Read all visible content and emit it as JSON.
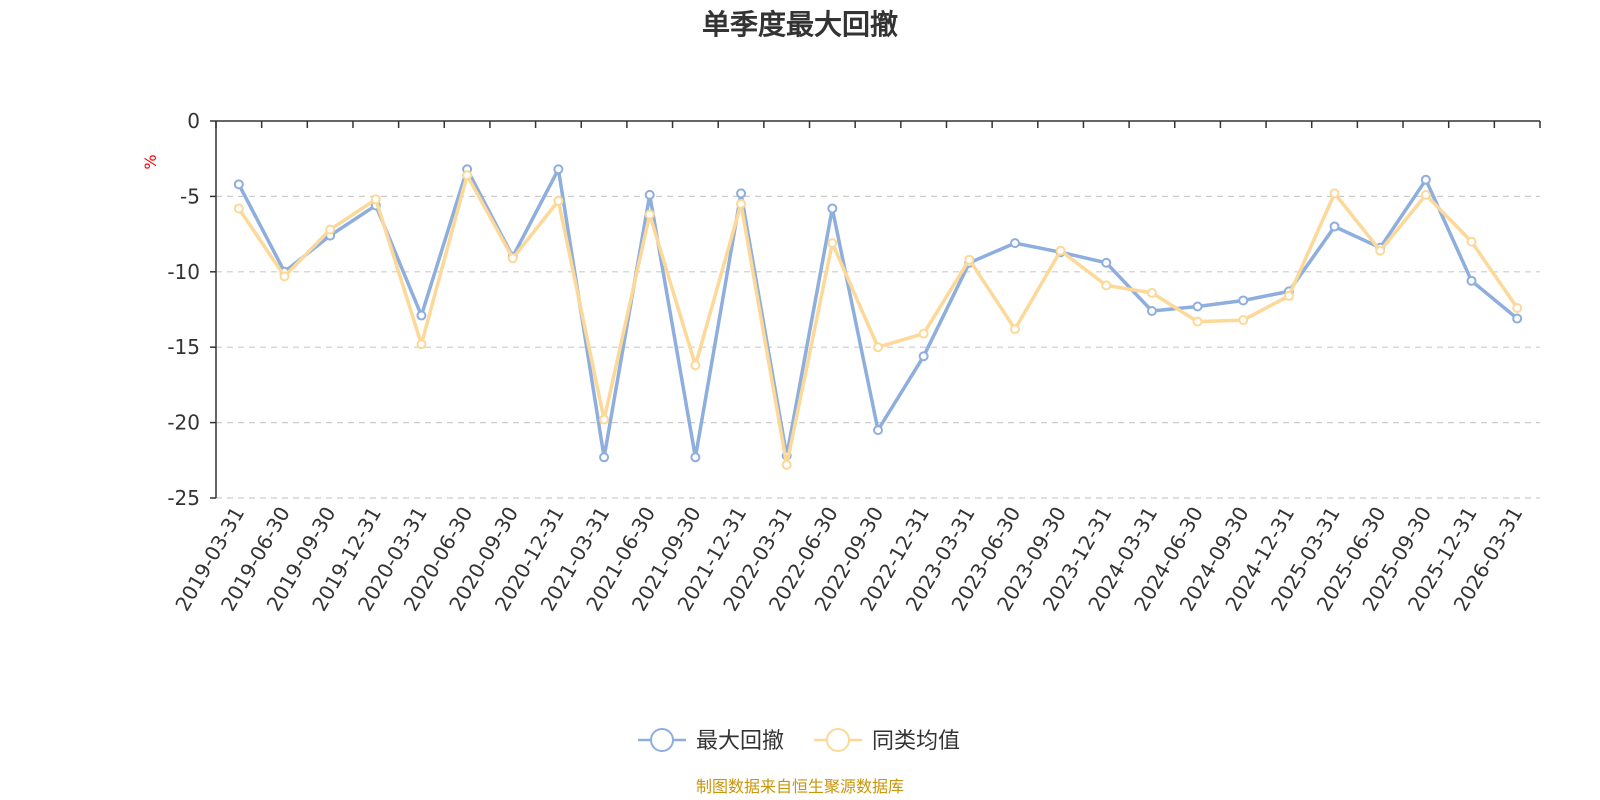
{
  "chart_data": {
    "type": "line",
    "title": "单季度最大回撤",
    "unit_label": "%",
    "source": "制图数据来自恒生聚源数据库",
    "ylim": [
      -25,
      0
    ],
    "yticks": [
      0,
      -5,
      -10,
      -15,
      -20,
      -25
    ],
    "grid": true,
    "legend_position": "bottom",
    "categories": [
      "2019-03-31",
      "2019-06-30",
      "2019-09-30",
      "2019-12-31",
      "2020-03-31",
      "2020-06-30",
      "2020-09-30",
      "2020-12-31",
      "2021-03-31",
      "2021-06-30",
      "2021-09-30",
      "2021-12-31",
      "2022-03-31",
      "2022-06-30",
      "2022-09-30",
      "2022-12-31",
      "2023-03-31",
      "2023-06-30",
      "2023-09-30",
      "2023-12-31",
      "2024-03-31",
      "2024-06-30",
      "2024-09-30",
      "2024-12-31",
      "2025-03-31",
      "2025-06-30",
      "2025-09-30",
      "2025-12-31",
      "2026-03-31"
    ],
    "series": [
      {
        "name": "最大回撤",
        "color": "#8eaedd",
        "values": [
          -4.2,
          -10.0,
          -7.6,
          -5.6,
          -12.9,
          -3.2,
          -9.0,
          -3.2,
          -22.3,
          -4.9,
          -22.3,
          -4.8,
          -22.2,
          -5.8,
          -20.5,
          -15.6,
          -9.4,
          -8.1,
          -8.7,
          -9.4,
          -12.6,
          -12.3,
          -11.9,
          -11.3,
          -7.0,
          -8.4,
          -3.9,
          -10.6,
          -13.1
        ]
      },
      {
        "name": "同类均值",
        "color": "#fcd899",
        "values": [
          -5.8,
          -10.3,
          -7.2,
          -5.2,
          -14.8,
          -3.6,
          -9.1,
          -5.3,
          -19.8,
          -6.2,
          -16.2,
          -5.5,
          -22.8,
          -8.1,
          -15.0,
          -14.1,
          -9.2,
          -13.8,
          -8.6,
          -10.9,
          -11.4,
          -13.3,
          -13.2,
          -11.6,
          -4.8,
          -8.6,
          -4.9,
          -8.0,
          -12.4
        ]
      }
    ]
  }
}
